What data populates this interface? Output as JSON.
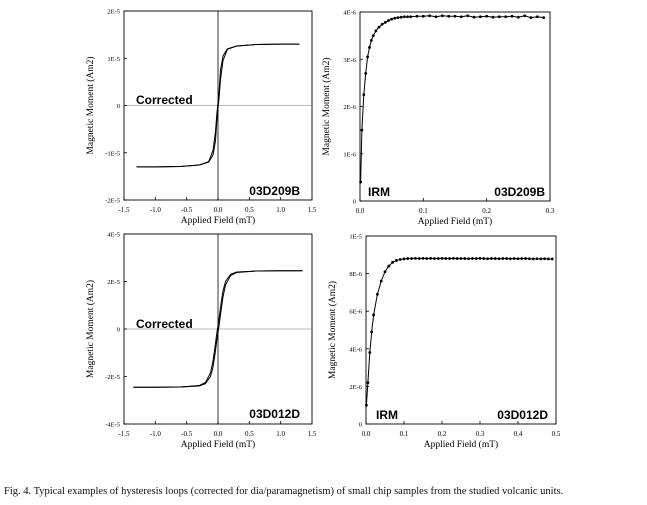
{
  "caption": "Fig. 4. Typical examples of hysteresis loops (corrected for dia/paramagnetism) of small chip samples from the studied volcanic units.",
  "chart_data": [
    {
      "type": "line",
      "sample": "03D209B",
      "tag": "Corrected",
      "xlabel": "Applied Field (mT)",
      "ylabel": "Magnetic Moment (Am2)",
      "xlim": [
        -1.5,
        1.5
      ],
      "ylim": [
        -2e-05,
        2e-05
      ],
      "xticks": [
        -1.5,
        -1.0,
        -0.5,
        0.0,
        0.5,
        1.0,
        1.5
      ],
      "xtick_labels": [
        "-1.5",
        "-1.0",
        "-0.5",
        "0.0",
        "0.5",
        "1.0",
        "1.5"
      ],
      "yticks": [
        2e-05,
        1e-05,
        0,
        -1e-05,
        -2e-05
      ],
      "ytick_labels": [
        "2E-5",
        "1E-5",
        "0",
        "-1E-5",
        "-2E-5"
      ],
      "axes_through_origin": true,
      "series": [
        {
          "branch": "descending",
          "x": [
            1.3,
            1.0,
            0.6,
            0.3,
            0.15,
            0.08,
            0.04,
            0.02,
            0.0,
            -0.02,
            -0.04,
            -0.08,
            -0.15,
            -0.3,
            -0.6,
            -1.0,
            -1.3
          ],
          "y": [
            1.3e-05,
            1.3e-05,
            1.29e-05,
            1.26e-05,
            1.2e-05,
            1.05e-05,
            7.5e-06,
            3.5e-06,
            6e-07,
            -2e-06,
            -5.5e-06,
            -9.5e-06,
            -1.19e-05,
            -1.26e-05,
            -1.29e-05,
            -1.3e-05,
            -1.3e-05
          ]
        },
        {
          "branch": "ascending",
          "x": [
            -1.3,
            -1.0,
            -0.6,
            -0.3,
            -0.15,
            -0.08,
            -0.04,
            -0.02,
            0.0,
            0.02,
            0.04,
            0.08,
            0.15,
            0.3,
            0.6,
            1.0,
            1.3
          ],
          "y": [
            -1.3e-05,
            -1.3e-05,
            -1.29e-05,
            -1.26e-05,
            -1.2e-05,
            -1.05e-05,
            -7.5e-06,
            -3.5e-06,
            -6e-07,
            2e-06,
            5.5e-06,
            9.5e-06,
            1.19e-05,
            1.26e-05,
            1.29e-05,
            1.3e-05,
            1.3e-05
          ]
        }
      ]
    },
    {
      "type": "line",
      "sample": "03D209B",
      "tag": "IRM",
      "markers": true,
      "xlabel": "Applied Field (mT)",
      "ylabel": "Magnetic Moment (Am2)",
      "xlim": [
        0,
        0.3
      ],
      "ylim": [
        0,
        4e-06
      ],
      "xticks": [
        0.0,
        0.1,
        0.2,
        0.3
      ],
      "xtick_labels": [
        "0.0",
        "0.1",
        "0.2",
        "0.3"
      ],
      "yticks": [
        4e-06,
        3e-06,
        2e-06,
        1e-06,
        0
      ],
      "ytick_labels": [
        "4E-6",
        "3E-6",
        "2E-6",
        "1E-6",
        "0"
      ],
      "series": [
        {
          "x": [
            0.001,
            0.003,
            0.006,
            0.009,
            0.012,
            0.015,
            0.018,
            0.021,
            0.025,
            0.03,
            0.035,
            0.04,
            0.045,
            0.05,
            0.055,
            0.06,
            0.065,
            0.07,
            0.075,
            0.08,
            0.09,
            0.1,
            0.11,
            0.12,
            0.13,
            0.14,
            0.15,
            0.16,
            0.17,
            0.18,
            0.19,
            0.2,
            0.21,
            0.22,
            0.23,
            0.24,
            0.25,
            0.26,
            0.27,
            0.28,
            0.29
          ],
          "y": [
            4e-07,
            1.5e-06,
            2.25e-06,
            2.7e-06,
            3.05e-06,
            3.25e-06,
            3.4e-06,
            3.5e-06,
            3.6e-06,
            3.68e-06,
            3.74e-06,
            3.78e-06,
            3.82e-06,
            3.85e-06,
            3.87e-06,
            3.88e-06,
            3.89e-06,
            3.9e-06,
            3.9e-06,
            3.9e-06,
            3.91e-06,
            3.91e-06,
            3.92e-06,
            3.9e-06,
            3.92e-06,
            3.91e-06,
            3.91e-06,
            3.9e-06,
            3.92e-06,
            3.89e-06,
            3.9e-06,
            3.91e-06,
            3.89e-06,
            3.9e-06,
            3.9e-06,
            3.91e-06,
            3.89e-06,
            3.92e-06,
            3.88e-06,
            3.9e-06,
            3.88e-06
          ]
        }
      ]
    },
    {
      "type": "line",
      "sample": "03D012D",
      "tag": "Corrected",
      "xlabel": "Applied Field (mT)",
      "ylabel": "Magnetic Moment (Am2)",
      "xlim": [
        -1.5,
        1.5
      ],
      "ylim": [
        -4e-05,
        4e-05
      ],
      "xticks": [
        -1.5,
        -1.0,
        -0.5,
        0.0,
        0.5,
        1.0,
        1.5
      ],
      "xtick_labels": [
        "-1.5",
        "-1.0",
        "-0.5",
        "0.0",
        "0.5",
        "1.0",
        "1.5"
      ],
      "yticks": [
        4e-05,
        2e-05,
        0,
        -2e-05,
        -4e-05
      ],
      "ytick_labels": [
        "4E-5",
        "2E-5",
        "0",
        "-2E-5",
        "-4E-5"
      ],
      "axes_through_origin": true,
      "series": [
        {
          "branch": "descending",
          "x": [
            1.35,
            1.0,
            0.6,
            0.3,
            0.2,
            0.12,
            0.08,
            0.05,
            0.02,
            0.0,
            -0.02,
            -0.05,
            -0.08,
            -0.12,
            -0.2,
            -0.3,
            -0.6,
            -1.0,
            -1.35
          ],
          "y": [
            2.45e-05,
            2.45e-05,
            2.44e-05,
            2.4e-05,
            2.3e-05,
            2e-05,
            1.6e-05,
            1.1e-05,
            5e-06,
            1.5e-06,
            -2e-06,
            -8e-06,
            -1.35e-05,
            -1.85e-05,
            -2.25e-05,
            -2.38e-05,
            -2.44e-05,
            -2.45e-05,
            -2.45e-05
          ]
        },
        {
          "branch": "ascending",
          "x": [
            -1.35,
            -1.0,
            -0.6,
            -0.3,
            -0.2,
            -0.12,
            -0.08,
            -0.05,
            -0.02,
            0.0,
            0.02,
            0.05,
            0.08,
            0.12,
            0.2,
            0.3,
            0.6,
            1.0,
            1.35
          ],
          "y": [
            -2.45e-05,
            -2.45e-05,
            -2.44e-05,
            -2.4e-05,
            -2.3e-05,
            -2e-05,
            -1.6e-05,
            -1.1e-05,
            -5e-06,
            -1.5e-06,
            2e-06,
            8e-06,
            1.35e-05,
            1.85e-05,
            2.25e-05,
            2.38e-05,
            2.44e-05,
            2.45e-05,
            2.45e-05
          ]
        }
      ]
    },
    {
      "type": "line",
      "sample": "03D012D",
      "tag": "IRM",
      "markers": true,
      "xlabel": "Applied Field (mT)",
      "ylabel": "Magnetic Moment (Am2)",
      "xlim": [
        0,
        0.5
      ],
      "ylim": [
        0,
        1e-05
      ],
      "xticks": [
        0.0,
        0.1,
        0.2,
        0.3,
        0.4,
        0.5
      ],
      "xtick_labels": [
        "0.0",
        "0.1",
        "0.2",
        "0.3",
        "0.4",
        "0.5"
      ],
      "yticks": [
        1e-05,
        8e-06,
        6e-06,
        4e-06,
        2e-06,
        0
      ],
      "ytick_labels": [
        "1E-5",
        "8E-6",
        "6E-6",
        "4E-6",
        "2E-6",
        "0"
      ],
      "series": [
        {
          "x": [
            0.001,
            0.005,
            0.01,
            0.015,
            0.02,
            0.03,
            0.04,
            0.05,
            0.06,
            0.07,
            0.08,
            0.09,
            0.1,
            0.11,
            0.12,
            0.13,
            0.14,
            0.15,
            0.16,
            0.17,
            0.18,
            0.19,
            0.2,
            0.21,
            0.22,
            0.23,
            0.24,
            0.25,
            0.26,
            0.27,
            0.28,
            0.29,
            0.3,
            0.31,
            0.32,
            0.33,
            0.34,
            0.35,
            0.36,
            0.37,
            0.38,
            0.39,
            0.4,
            0.41,
            0.42,
            0.43,
            0.44,
            0.45,
            0.46,
            0.47,
            0.48,
            0.49
          ],
          "y": [
            1e-06,
            2.2e-06,
            3.8e-06,
            4.9e-06,
            5.8e-06,
            6.9e-06,
            7.6e-06,
            8.1e-06,
            8.4e-06,
            8.6e-06,
            8.7e-06,
            8.75e-06,
            8.78e-06,
            8.8e-06,
            8.8e-06,
            8.81e-06,
            8.8e-06,
            8.81e-06,
            8.8e-06,
            8.81e-06,
            8.8e-06,
            8.8e-06,
            8.81e-06,
            8.8e-06,
            8.8e-06,
            8.81e-06,
            8.8e-06,
            8.8e-06,
            8.8e-06,
            8.79e-06,
            8.8e-06,
            8.8e-06,
            8.81e-06,
            8.8e-06,
            8.79e-06,
            8.8e-06,
            8.8e-06,
            8.79e-06,
            8.8e-06,
            8.8e-06,
            8.79e-06,
            8.8e-06,
            8.79e-06,
            8.8e-06,
            8.8e-06,
            8.79e-06,
            8.78e-06,
            8.79e-06,
            8.78e-06,
            8.79e-06,
            8.78e-06,
            8.78e-06
          ]
        }
      ]
    }
  ]
}
